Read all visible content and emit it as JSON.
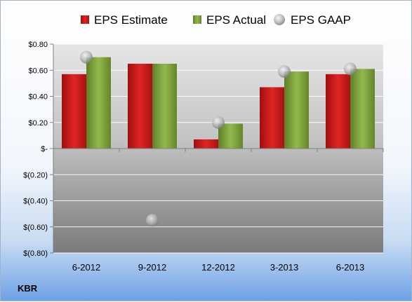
{
  "chart_data": {
    "type": "bar",
    "title": "",
    "xlabel": "",
    "ylabel": "",
    "categories": [
      "6-2012",
      "9-2012",
      "12-2012",
      "3-2013",
      "6-2013"
    ],
    "series": [
      {
        "name": "EPS Estimate",
        "kind": "bar",
        "color": "#cc1a1a",
        "values": [
          0.57,
          0.65,
          0.07,
          0.47,
          0.57
        ]
      },
      {
        "name": "EPS Actual",
        "kind": "bar",
        "color": "#7ea23c",
        "values": [
          0.7,
          0.65,
          0.19,
          0.59,
          0.61
        ]
      },
      {
        "name": "EPS GAAP",
        "kind": "scatter",
        "color": "#b8b8b8",
        "values": [
          0.7,
          -0.55,
          0.2,
          0.59,
          0.61
        ]
      }
    ],
    "ylim": [
      -0.8,
      0.8
    ],
    "yticks": [
      0.8,
      0.6,
      0.4,
      0.2,
      0,
      -0.2,
      -0.4,
      -0.6,
      -0.8
    ],
    "ytick_labels": [
      "$0.80",
      "$0.60",
      "$0.40",
      "$0.20",
      "$-",
      "$(0.20)",
      "$(0.40)",
      "$(0.60)",
      "$(0.80)"
    ],
    "grid": true,
    "legend_position": "top",
    "footer_label": "KBR"
  }
}
